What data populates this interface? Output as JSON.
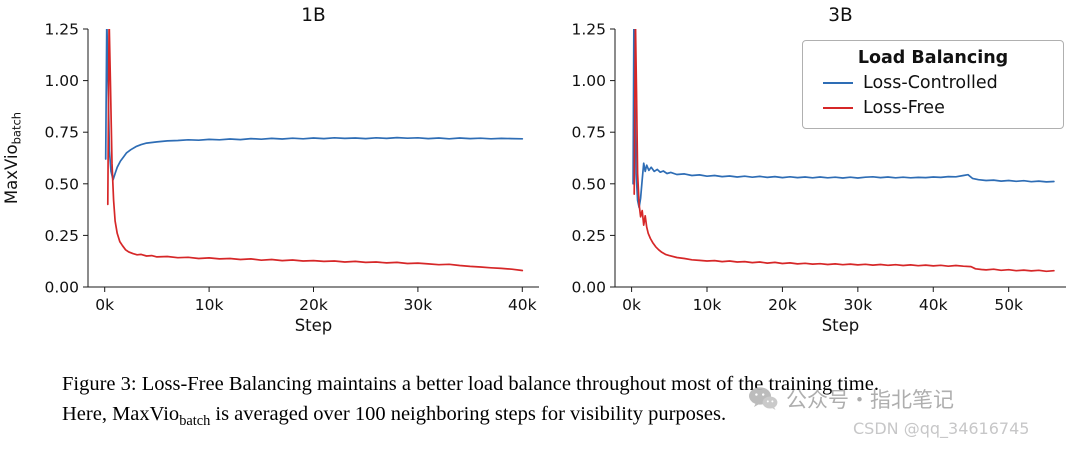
{
  "caption": {
    "line1": "Figure 3: Loss-Free Balancing maintains a better load balance throughout most of the training time.",
    "line2_pre": "Here, MaxVio",
    "line2_sub": "batch",
    "line2_post": " is averaged over 100 neighboring steps for visibility purposes."
  },
  "watermarks": {
    "wechat": "公众号・指北笔记",
    "csdn": "CSDN @qq_34616745"
  },
  "chart_data": [
    {
      "id": "chart-1b",
      "type": "line",
      "title": "1B",
      "xlabel": "Step",
      "ylabel_main": "MaxVio",
      "ylabel_sub": "batch",
      "xlim": [
        -1.6,
        41.6
      ],
      "ylim": [
        0,
        1.25
      ],
      "grid": false,
      "xticks": [
        {
          "v": 0,
          "label": "0k"
        },
        {
          "v": 10,
          "label": "10k"
        },
        {
          "v": 20,
          "label": "20k"
        },
        {
          "v": 30,
          "label": "30k"
        },
        {
          "v": 40,
          "label": "40k"
        }
      ],
      "yticks": [
        {
          "v": 0,
          "label": "0.00"
        },
        {
          "v": 0.25,
          "label": "0.25"
        },
        {
          "v": 0.5,
          "label": "0.50"
        },
        {
          "v": 0.75,
          "label": "0.75"
        },
        {
          "v": 1.0,
          "label": "1.00"
        },
        {
          "v": 1.25,
          "label": "1.25"
        }
      ],
      "series": [
        {
          "name": "Loss-Controlled",
          "color": "#2e6db5",
          "points": [
            [
              0.1,
              0.62
            ],
            [
              0.2,
              1.3
            ],
            [
              0.3,
              1.05
            ],
            [
              0.45,
              0.66
            ],
            [
              0.6,
              0.56
            ],
            [
              0.8,
              0.52
            ],
            [
              1.0,
              0.55
            ],
            [
              1.2,
              0.58
            ],
            [
              1.5,
              0.61
            ],
            [
              1.8,
              0.63
            ],
            [
              2.1,
              0.65
            ],
            [
              2.5,
              0.665
            ],
            [
              3.0,
              0.68
            ],
            [
              3.5,
              0.69
            ],
            [
              4.0,
              0.697
            ],
            [
              4.5,
              0.7
            ],
            [
              5.0,
              0.703
            ],
            [
              6.0,
              0.708
            ],
            [
              7.0,
              0.71
            ],
            [
              8.0,
              0.713
            ],
            [
              9.0,
              0.711
            ],
            [
              10,
              0.715
            ],
            [
              11,
              0.713
            ],
            [
              12,
              0.717
            ],
            [
              13,
              0.714
            ],
            [
              14,
              0.719
            ],
            [
              15,
              0.716
            ],
            [
              16,
              0.72
            ],
            [
              17,
              0.717
            ],
            [
              18,
              0.721
            ],
            [
              19,
              0.718
            ],
            [
              20,
              0.722
            ],
            [
              21,
              0.719
            ],
            [
              22,
              0.723
            ],
            [
              23,
              0.72
            ],
            [
              24,
              0.722
            ],
            [
              25,
              0.719
            ],
            [
              26,
              0.723
            ],
            [
              27,
              0.72
            ],
            [
              28,
              0.724
            ],
            [
              29,
              0.721
            ],
            [
              30,
              0.723
            ],
            [
              31,
              0.719
            ],
            [
              32,
              0.722
            ],
            [
              33,
              0.718
            ],
            [
              34,
              0.722
            ],
            [
              35,
              0.719
            ],
            [
              36,
              0.721
            ],
            [
              37,
              0.718
            ],
            [
              38,
              0.72
            ],
            [
              39,
              0.719
            ],
            [
              40,
              0.718
            ]
          ]
        },
        {
          "name": "Loss-Free",
          "color": "#d62728",
          "points": [
            [
              0.3,
              0.4
            ],
            [
              0.42,
              1.3
            ],
            [
              0.55,
              1.0
            ],
            [
              0.7,
              0.6
            ],
            [
              0.85,
              0.42
            ],
            [
              1.0,
              0.32
            ],
            [
              1.2,
              0.26
            ],
            [
              1.45,
              0.22
            ],
            [
              1.7,
              0.2
            ],
            [
              2.0,
              0.18
            ],
            [
              2.3,
              0.17
            ],
            [
              2.7,
              0.162
            ],
            [
              3.1,
              0.156
            ],
            [
              3.5,
              0.158
            ],
            [
              4.0,
              0.15
            ],
            [
              4.5,
              0.152
            ],
            [
              5.0,
              0.146
            ],
            [
              6.0,
              0.148
            ],
            [
              7.0,
              0.142
            ],
            [
              8.0,
              0.144
            ],
            [
              9.0,
              0.138
            ],
            [
              10,
              0.141
            ],
            [
              11,
              0.136
            ],
            [
              12,
              0.138
            ],
            [
              13,
              0.133
            ],
            [
              14,
              0.136
            ],
            [
              15,
              0.13
            ],
            [
              16,
              0.133
            ],
            [
              17,
              0.128
            ],
            [
              18,
              0.131
            ],
            [
              19,
              0.126
            ],
            [
              20,
              0.128
            ],
            [
              21,
              0.124
            ],
            [
              22,
              0.126
            ],
            [
              23,
              0.121
            ],
            [
              24,
              0.124
            ],
            [
              25,
              0.119
            ],
            [
              26,
              0.121
            ],
            [
              27,
              0.117
            ],
            [
              28,
              0.119
            ],
            [
              29,
              0.114
            ],
            [
              30,
              0.116
            ],
            [
              31,
              0.112
            ],
            [
              32,
              0.108
            ],
            [
              33,
              0.11
            ],
            [
              34,
              0.104
            ],
            [
              35,
              0.1
            ],
            [
              36,
              0.097
            ],
            [
              37,
              0.093
            ],
            [
              38,
              0.09
            ],
            [
              39,
              0.086
            ],
            [
              40,
              0.08
            ]
          ]
        }
      ]
    },
    {
      "id": "chart-3b",
      "type": "line",
      "title": "3B",
      "xlabel": "Step",
      "xlim": [
        -2.2,
        57.6
      ],
      "ylim": [
        0,
        1.25
      ],
      "grid": false,
      "legend": {
        "title": "Load Balancing",
        "position": "upper right",
        "entries": [
          {
            "label": "Loss-Controlled",
            "color": "#2e6db5"
          },
          {
            "label": "Loss-Free",
            "color": "#d62728"
          }
        ]
      },
      "xticks": [
        {
          "v": 0,
          "label": "0k"
        },
        {
          "v": 10,
          "label": "10k"
        },
        {
          "v": 20,
          "label": "20k"
        },
        {
          "v": 30,
          "label": "30k"
        },
        {
          "v": 40,
          "label": "40k"
        },
        {
          "v": 50,
          "label": "50k"
        }
      ],
      "yticks": [
        {
          "v": 0,
          "label": "0.00"
        },
        {
          "v": 0.25,
          "label": "0.25"
        },
        {
          "v": 0.5,
          "label": "0.50"
        },
        {
          "v": 0.75,
          "label": "0.75"
        },
        {
          "v": 1.0,
          "label": "1.00"
        },
        {
          "v": 1.25,
          "label": "1.25"
        }
      ],
      "series": [
        {
          "name": "Loss-Controlled",
          "color": "#2e6db5",
          "points": [
            [
              0.2,
              0.5
            ],
            [
              0.3,
              1.3
            ],
            [
              0.45,
              0.9
            ],
            [
              0.6,
              0.55
            ],
            [
              0.8,
              0.42
            ],
            [
              1.0,
              0.385
            ],
            [
              1.2,
              0.43
            ],
            [
              1.4,
              0.52
            ],
            [
              1.6,
              0.6
            ],
            [
              1.8,
              0.56
            ],
            [
              2.0,
              0.59
            ],
            [
              2.3,
              0.565
            ],
            [
              2.6,
              0.58
            ],
            [
              3.0,
              0.56
            ],
            [
              3.4,
              0.57
            ],
            [
              3.8,
              0.556
            ],
            [
              4.2,
              0.562
            ],
            [
              4.7,
              0.55
            ],
            [
              5.2,
              0.555
            ],
            [
              6,
              0.545
            ],
            [
              7,
              0.548
            ],
            [
              8,
              0.54
            ],
            [
              9,
              0.543
            ],
            [
              10,
              0.537
            ],
            [
              11,
              0.54
            ],
            [
              12,
              0.535
            ],
            [
              13,
              0.538
            ],
            [
              14,
              0.533
            ],
            [
              15,
              0.537
            ],
            [
              16,
              0.532
            ],
            [
              17,
              0.536
            ],
            [
              18,
              0.531
            ],
            [
              19,
              0.535
            ],
            [
              20,
              0.53
            ],
            [
              21,
              0.534
            ],
            [
              22,
              0.53
            ],
            [
              23,
              0.533
            ],
            [
              24,
              0.529
            ],
            [
              25,
              0.533
            ],
            [
              26,
              0.529
            ],
            [
              27,
              0.532
            ],
            [
              28,
              0.528
            ],
            [
              29,
              0.532
            ],
            [
              30,
              0.528
            ],
            [
              31,
              0.532
            ],
            [
              32,
              0.534
            ],
            [
              33,
              0.53
            ],
            [
              34,
              0.533
            ],
            [
              35,
              0.529
            ],
            [
              36,
              0.532
            ],
            [
              37,
              0.529
            ],
            [
              38,
              0.531
            ],
            [
              39,
              0.53
            ],
            [
              40,
              0.533
            ],
            [
              41,
              0.531
            ],
            [
              42,
              0.535
            ],
            [
              43,
              0.534
            ],
            [
              44,
              0.54
            ],
            [
              44.6,
              0.544
            ],
            [
              45.2,
              0.526
            ],
            [
              46,
              0.52
            ],
            [
              47,
              0.516
            ],
            [
              48,
              0.518
            ],
            [
              49,
              0.513
            ],
            [
              50,
              0.516
            ],
            [
              51,
              0.512
            ],
            [
              52,
              0.515
            ],
            [
              53,
              0.51
            ],
            [
              54,
              0.513
            ],
            [
              55,
              0.509
            ],
            [
              56,
              0.511
            ]
          ]
        },
        {
          "name": "Loss-Free",
          "color": "#d62728",
          "points": [
            [
              0.35,
              0.45
            ],
            [
              0.5,
              1.3
            ],
            [
              0.65,
              0.95
            ],
            [
              0.8,
              0.55
            ],
            [
              1.0,
              0.4
            ],
            [
              1.2,
              0.34
            ],
            [
              1.4,
              0.37
            ],
            [
              1.6,
              0.3
            ],
            [
              1.8,
              0.345
            ],
            [
              2.0,
              0.29
            ],
            [
              2.2,
              0.26
            ],
            [
              2.5,
              0.235
            ],
            [
              2.8,
              0.215
            ],
            [
              3.2,
              0.195
            ],
            [
              3.6,
              0.18
            ],
            [
              4.0,
              0.168
            ],
            [
              4.5,
              0.158
            ],
            [
              5.0,
              0.152
            ],
            [
              6,
              0.143
            ],
            [
              7,
              0.138
            ],
            [
              8,
              0.132
            ],
            [
              9,
              0.129
            ],
            [
              10,
              0.126
            ],
            [
              11,
              0.128
            ],
            [
              12,
              0.123
            ],
            [
              13,
              0.126
            ],
            [
              14,
              0.121
            ],
            [
              15,
              0.123
            ],
            [
              16,
              0.118
            ],
            [
              17,
              0.121
            ],
            [
              18,
              0.116
            ],
            [
              19,
              0.119
            ],
            [
              20,
              0.114
            ],
            [
              21,
              0.117
            ],
            [
              22,
              0.112
            ],
            [
              23,
              0.115
            ],
            [
              24,
              0.111
            ],
            [
              25,
              0.113
            ],
            [
              26,
              0.109
            ],
            [
              27,
              0.112
            ],
            [
              28,
              0.108
            ],
            [
              29,
              0.111
            ],
            [
              30,
              0.107
            ],
            [
              31,
              0.11
            ],
            [
              32,
              0.106
            ],
            [
              33,
              0.109
            ],
            [
              34,
              0.105
            ],
            [
              35,
              0.108
            ],
            [
              36,
              0.104
            ],
            [
              37,
              0.107
            ],
            [
              38,
              0.103
            ],
            [
              39,
              0.106
            ],
            [
              40,
              0.102
            ],
            [
              41,
              0.105
            ],
            [
              42,
              0.101
            ],
            [
              43,
              0.104
            ],
            [
              44,
              0.101
            ],
            [
              45,
              0.099
            ],
            [
              45.6,
              0.088
            ],
            [
              46.4,
              0.085
            ],
            [
              47,
              0.083
            ],
            [
              48,
              0.086
            ],
            [
              49,
              0.081
            ],
            [
              50,
              0.084
            ],
            [
              51,
              0.079
            ],
            [
              52,
              0.082
            ],
            [
              53,
              0.078
            ],
            [
              54,
              0.081
            ],
            [
              55,
              0.076
            ],
            [
              56,
              0.079
            ]
          ]
        }
      ]
    }
  ]
}
